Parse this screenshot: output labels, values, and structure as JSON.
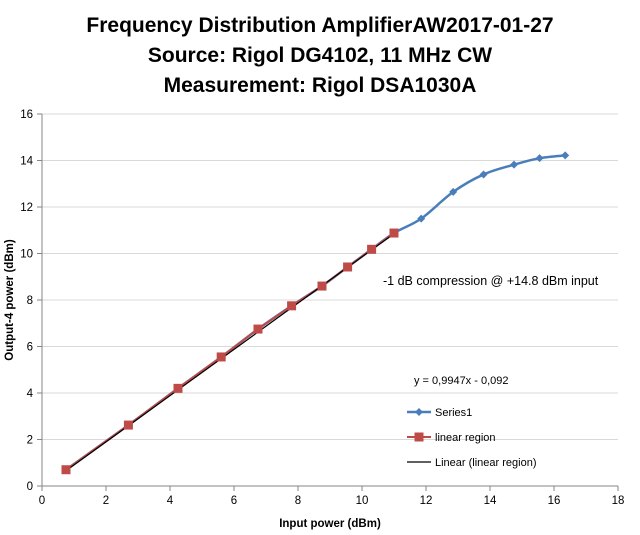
{
  "chart_data": {
    "type": "scatter",
    "title_lines": [
      "Frequency Distribution AmplifierAW2017-01-27",
      "Source: Rigol DG4102, 11 MHz CW",
      "Measurement: Rigol DSA1030A"
    ],
    "xlabel": "Input power (dBm)",
    "ylabel": "Output-4 power (dBm)",
    "xlim": [
      0,
      18
    ],
    "ylim": [
      0,
      16
    ],
    "xticks": [
      0,
      2,
      4,
      6,
      8,
      10,
      12,
      14,
      16,
      18
    ],
    "yticks": [
      0,
      2,
      4,
      6,
      8,
      10,
      12,
      14,
      16
    ],
    "grid": "horizontal",
    "legend_position": "right",
    "series": [
      {
        "name": "Series1",
        "color": "#4A7EBB",
        "marker": "diamond",
        "smooth": true,
        "x": [
          0.75,
          2.7,
          4.25,
          5.6,
          6.75,
          7.8,
          8.75,
          9.55,
          10.3,
          11.0,
          11.85,
          12.85,
          13.8,
          14.75,
          15.55,
          16.35
        ],
        "y": [
          0.7,
          2.62,
          4.2,
          5.55,
          6.75,
          7.75,
          8.6,
          9.42,
          10.18,
          10.88,
          11.5,
          12.65,
          13.4,
          13.82,
          14.1,
          14.22
        ]
      },
      {
        "name": "linear region",
        "color": "#BE4B48",
        "marker": "square",
        "x": [
          0.75,
          2.7,
          4.25,
          5.6,
          6.75,
          7.8,
          8.75,
          9.55,
          10.3,
          11.0
        ],
        "y": [
          0.7,
          2.62,
          4.2,
          5.55,
          6.75,
          7.75,
          8.6,
          9.42,
          10.18,
          10.88
        ]
      },
      {
        "name": "Linear (linear region)",
        "color": "#000000",
        "type": "trendline",
        "slope": 0.9947,
        "intercept": -0.092,
        "x_range": [
          0.75,
          11.0
        ]
      }
    ],
    "annotations": {
      "compression": "-1 dB compression @ +14.8 dBm input",
      "equation": "y = 0,9947x - 0,092"
    }
  }
}
